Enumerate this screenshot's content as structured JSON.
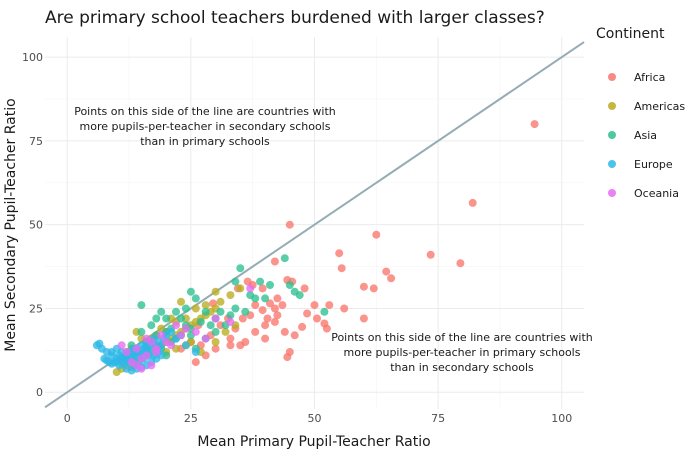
{
  "chart_data": {
    "type": "scatter",
    "title": "Are primary school teachers burdened with larger classes?",
    "xlabel": "Mean Primary Pupil-Teacher Ratio",
    "ylabel": "Mean Secondary Pupil-Teacher Ratio",
    "xlim": [
      -4.5,
      104.5
    ],
    "ylim": [
      -5,
      106
    ],
    "x_ticks": [
      0,
      25,
      50,
      75,
      100
    ],
    "y_ticks": [
      0,
      25,
      50,
      75,
      100
    ],
    "grid": true,
    "legend": {
      "title": "Continent",
      "position": "right"
    },
    "reference_line": {
      "type": "identity",
      "slope": 1,
      "intercept": 0,
      "color": "#95acb5"
    },
    "annotations": [
      {
        "lines": [
          "Points on this side of the line are countries with",
          "more pupils-per-teacher in secondary schools",
          "than in primary schools"
        ]
      },
      {
        "lines": [
          "Points on this side of the line are countries with",
          "more pupils-per-teacher in primary schools",
          "than in secondary schools"
        ]
      }
    ],
    "series": [
      {
        "name": "Africa",
        "color": "#F8766D",
        "points": [
          [
            94.5,
            80
          ],
          [
            82,
            56.5
          ],
          [
            73.5,
            41
          ],
          [
            79.5,
            38.5
          ],
          [
            62.5,
            47
          ],
          [
            55,
            41.5
          ],
          [
            55.5,
            37
          ],
          [
            64.5,
            36
          ],
          [
            65.5,
            34
          ],
          [
            45,
            50
          ],
          [
            42,
            39
          ],
          [
            44.5,
            33.5
          ],
          [
            45.5,
            33
          ],
          [
            36.5,
            33
          ],
          [
            34.5,
            31
          ],
          [
            37.5,
            32
          ],
          [
            39.5,
            31
          ],
          [
            42.5,
            28
          ],
          [
            48,
            31
          ],
          [
            50,
            26
          ],
          [
            53,
            26
          ],
          [
            56,
            25
          ],
          [
            60,
            31.5
          ],
          [
            62,
            31
          ],
          [
            60,
            22
          ],
          [
            52,
            20.5
          ],
          [
            50.5,
            22
          ],
          [
            52.5,
            19
          ],
          [
            47.5,
            19.5
          ],
          [
            44,
            18
          ],
          [
            40,
            16
          ],
          [
            36,
            15
          ],
          [
            33,
            14
          ],
          [
            30,
            13
          ],
          [
            28,
            11
          ],
          [
            26,
            9
          ],
          [
            35,
            14
          ],
          [
            38,
            18
          ],
          [
            42,
            25
          ],
          [
            40,
            20
          ],
          [
            45,
            12
          ],
          [
            44.5,
            10.5
          ],
          [
            40.5,
            22
          ],
          [
            43.5,
            26
          ],
          [
            41,
            26.5
          ],
          [
            42.5,
            23
          ],
          [
            39.5,
            24.5
          ],
          [
            38,
            26
          ],
          [
            35.5,
            22
          ],
          [
            34,
            19
          ],
          [
            32.5,
            22
          ],
          [
            31,
            20
          ],
          [
            33,
            16
          ],
          [
            29,
            17
          ],
          [
            27,
            14
          ],
          [
            46,
            17
          ],
          [
            48.5,
            23.5
          ],
          [
            25,
            15
          ],
          [
            23,
            13
          ],
          [
            26.5,
            20
          ],
          [
            29.5,
            26.5
          ],
          [
            42,
            21
          ],
          [
            37,
            23
          ]
        ]
      },
      {
        "name": "Americas",
        "color": "#B8AD1F",
        "points": [
          [
            10,
            6
          ],
          [
            11,
            7
          ],
          [
            12,
            8
          ],
          [
            13,
            7.5
          ],
          [
            14,
            9
          ],
          [
            15,
            10
          ],
          [
            16,
            11
          ],
          [
            17,
            12
          ],
          [
            18,
            13
          ],
          [
            19,
            14
          ],
          [
            20,
            15
          ],
          [
            21,
            16
          ],
          [
            22,
            17
          ],
          [
            23,
            18
          ],
          [
            24,
            19
          ],
          [
            25,
            20
          ],
          [
            26,
            21
          ],
          [
            27,
            22
          ],
          [
            28,
            23
          ],
          [
            29,
            24
          ],
          [
            30,
            25
          ],
          [
            31,
            27
          ],
          [
            33,
            29
          ],
          [
            35,
            31
          ],
          [
            14,
            18
          ],
          [
            15,
            16
          ],
          [
            16,
            15
          ],
          [
            18,
            17
          ],
          [
            20,
            18
          ],
          [
            22,
            21
          ],
          [
            24,
            22
          ],
          [
            26,
            25
          ],
          [
            28,
            26
          ],
          [
            30,
            30
          ],
          [
            12,
            12
          ],
          [
            13,
            13
          ],
          [
            14,
            12
          ],
          [
            17,
            16
          ],
          [
            19,
            19
          ],
          [
            21,
            22
          ],
          [
            23,
            27
          ],
          [
            25,
            15
          ],
          [
            27,
            12
          ],
          [
            30,
            15
          ],
          [
            32,
            18
          ],
          [
            34,
            20
          ],
          [
            11,
            10
          ],
          [
            13,
            11
          ],
          [
            16,
            13
          ],
          [
            18,
            14
          ],
          [
            20,
            12
          ],
          [
            22,
            13
          ],
          [
            24,
            14
          ]
        ]
      },
      {
        "name": "Asia",
        "color": "#2DBF8F",
        "points": [
          [
            35,
            37
          ],
          [
            39,
            33
          ],
          [
            44,
            40
          ],
          [
            41,
            32
          ],
          [
            45,
            32
          ],
          [
            47,
            29
          ],
          [
            52,
            24
          ],
          [
            15,
            26
          ],
          [
            18,
            22
          ],
          [
            20,
            18
          ],
          [
            22,
            16
          ],
          [
            24,
            20
          ],
          [
            26,
            28
          ],
          [
            28,
            24
          ],
          [
            30,
            22
          ],
          [
            32,
            20
          ],
          [
            34,
            25
          ],
          [
            36,
            24
          ],
          [
            38,
            28
          ],
          [
            40,
            28
          ],
          [
            46,
            30
          ],
          [
            13,
            14
          ],
          [
            14,
            12
          ],
          [
            16,
            15
          ],
          [
            18,
            17
          ],
          [
            19,
            13
          ],
          [
            20,
            11
          ],
          [
            21,
            15
          ],
          [
            23,
            17
          ],
          [
            25,
            19
          ],
          [
            27,
            21
          ],
          [
            29,
            20
          ],
          [
            31,
            24
          ],
          [
            33,
            23
          ],
          [
            12,
            10
          ],
          [
            15,
            18
          ],
          [
            17,
            20
          ],
          [
            19,
            24
          ],
          [
            21,
            19
          ],
          [
            23,
            22
          ],
          [
            25,
            17
          ],
          [
            26,
            13
          ],
          [
            28,
            16
          ],
          [
            30,
            18
          ],
          [
            34,
            33
          ],
          [
            37,
            29
          ],
          [
            25,
            30
          ],
          [
            22,
            24
          ],
          [
            20,
            22
          ],
          [
            24,
            25
          ]
        ]
      },
      {
        "name": "Europe",
        "color": "#2EB7E8",
        "points": [
          [
            6,
            14
          ],
          [
            6.5,
            14.5
          ],
          [
            7,
            13
          ],
          [
            8,
            12
          ],
          [
            9,
            11
          ],
          [
            10,
            10
          ],
          [
            11,
            9
          ],
          [
            12,
            9.5
          ],
          [
            13,
            10
          ],
          [
            14,
            10.5
          ],
          [
            15,
            11
          ],
          [
            16,
            12
          ],
          [
            17,
            13
          ],
          [
            18,
            13.5
          ],
          [
            19,
            14
          ],
          [
            7.5,
            10
          ],
          [
            8.5,
            9
          ],
          [
            9.5,
            9
          ],
          [
            10.5,
            8
          ],
          [
            11.5,
            8.5
          ],
          [
            12.5,
            9
          ],
          [
            13.5,
            8
          ],
          [
            14.5,
            9
          ],
          [
            15.5,
            10
          ],
          [
            16.5,
            11
          ],
          [
            17.5,
            11
          ],
          [
            18.5,
            12
          ],
          [
            10,
            13
          ],
          [
            11,
            12
          ],
          [
            12,
            11
          ],
          [
            13,
            12
          ],
          [
            14,
            13
          ],
          [
            15,
            14
          ],
          [
            16,
            14
          ],
          [
            17,
            15
          ],
          [
            9,
            12
          ],
          [
            10.5,
            11
          ],
          [
            11.5,
            10.5
          ],
          [
            12.5,
            12
          ],
          [
            13.5,
            13
          ],
          [
            14.5,
            12
          ],
          [
            15.5,
            13
          ],
          [
            16.5,
            14
          ],
          [
            17.5,
            16
          ],
          [
            18.5,
            15
          ],
          [
            19.5,
            16
          ],
          [
            20,
            17
          ],
          [
            21,
            18
          ],
          [
            22,
            16
          ],
          [
            24,
            14
          ],
          [
            26,
            12
          ],
          [
            8,
            9.5
          ],
          [
            9,
            8.5
          ],
          [
            10,
            9
          ],
          [
            11,
            10
          ],
          [
            12,
            10
          ],
          [
            13,
            10.5
          ],
          [
            14,
            11
          ],
          [
            15,
            11.5
          ],
          [
            16,
            12.5
          ],
          [
            12,
            7
          ],
          [
            13,
            6.5
          ],
          [
            14,
            7
          ],
          [
            15,
            7.5
          ],
          [
            16,
            8
          ],
          [
            17,
            9
          ],
          [
            18,
            10
          ],
          [
            19,
            11
          ]
        ]
      },
      {
        "name": "Oceania",
        "color": "#E76BF3",
        "points": [
          [
            11,
            14
          ],
          [
            12,
            12
          ],
          [
            13,
            9
          ],
          [
            14,
            8
          ],
          [
            15,
            10
          ],
          [
            16,
            11
          ],
          [
            17,
            15
          ],
          [
            18,
            13
          ],
          [
            19,
            17
          ],
          [
            20,
            15
          ],
          [
            21,
            14
          ],
          [
            23,
            17
          ],
          [
            24,
            19
          ],
          [
            26,
            18
          ],
          [
            28,
            16
          ],
          [
            30,
            22
          ],
          [
            33,
            21
          ],
          [
            37,
            31
          ],
          [
            14,
            13
          ],
          [
            16,
            16
          ],
          [
            18,
            12
          ],
          [
            15,
            7
          ],
          [
            17,
            8
          ],
          [
            22,
            20
          ]
        ]
      }
    ]
  }
}
